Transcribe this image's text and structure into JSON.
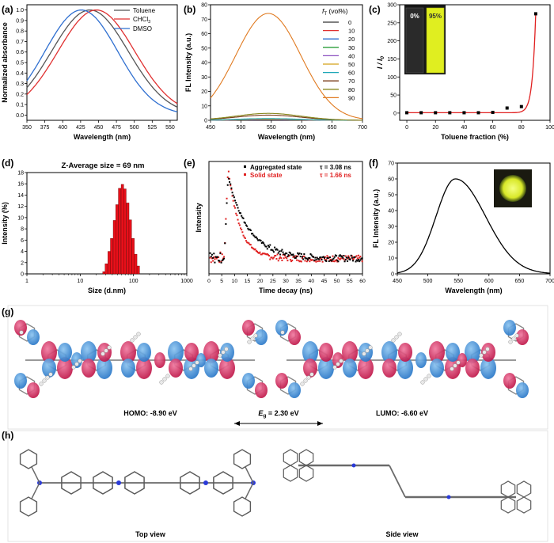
{
  "chart_data": [
    {
      "panel": "(a)",
      "type": "line",
      "xlabel": "Wavelength (nm)",
      "ylabel": "Normalized absorbance",
      "xlim": [
        350,
        560
      ],
      "ylim": [
        -0.05,
        1.05
      ],
      "xticks": [
        350,
        375,
        400,
        425,
        450,
        475,
        500,
        525,
        550
      ],
      "yticks": [
        0.0,
        0.1,
        0.2,
        0.3,
        0.4,
        0.5,
        0.6,
        0.7,
        0.8,
        0.9,
        1.0
      ],
      "legend_position": "top-right",
      "series": [
        {
          "name": "Toluene",
          "peak": 438,
          "width": 38,
          "color": "#555555"
        },
        {
          "name": "CHCl3",
          "peak": 447,
          "width": 38,
          "color": "#e03030"
        },
        {
          "name": "DMSO",
          "peak": 426,
          "width": 36,
          "color": "#2f6fd0"
        }
      ]
    },
    {
      "panel": "(b)",
      "type": "line",
      "xlabel": "Wavelength (nm)",
      "ylabel": "FL Intensity (a.u.)",
      "xlim": [
        450,
        700
      ],
      "ylim": [
        0,
        80
      ],
      "xticks": [
        450,
        500,
        550,
        600,
        650,
        700
      ],
      "yticks": [
        0,
        10,
        20,
        30,
        40,
        50,
        60,
        70,
        80
      ],
      "legend_title": "fT (vol%)",
      "legend_position": "top-right",
      "series": [
        {
          "name": "0",
          "peak": 0.3,
          "color": "#333333"
        },
        {
          "name": "10",
          "peak": 0.4,
          "color": "#e03030"
        },
        {
          "name": "20",
          "peak": 0.5,
          "color": "#2f6fd0"
        },
        {
          "name": "30",
          "peak": 0.6,
          "color": "#2a9d3a"
        },
        {
          "name": "40",
          "peak": 0.7,
          "color": "#8a4fbf"
        },
        {
          "name": "50",
          "peak": 0.9,
          "color": "#d4a017"
        },
        {
          "name": "60",
          "peak": 1.2,
          "color": "#1fa8b8"
        },
        {
          "name": "70",
          "peak": 3.6,
          "color": "#7a3b1a"
        },
        {
          "name": "80",
          "peak": 4.8,
          "color": "#8a8a20"
        },
        {
          "name": "90",
          "peak": 74,
          "color": "#e07a20"
        }
      ],
      "peak_wavelength": 545,
      "width": 38
    },
    {
      "panel": "(c)",
      "type": "scatter",
      "xlabel": "Toluene fraction (%)",
      "ylabel": "I / I0",
      "xlim": [
        -5,
        100
      ],
      "ylim": [
        -20,
        300
      ],
      "xticks": [
        0,
        20,
        40,
        60,
        80,
        100
      ],
      "yticks": [
        0,
        50,
        100,
        150,
        200,
        250,
        300
      ],
      "x": [
        0,
        10,
        20,
        30,
        40,
        50,
        60,
        70,
        80,
        90
      ],
      "y": [
        1,
        1,
        1,
        1,
        1,
        1,
        2,
        14,
        18,
        275
      ],
      "inset_labels": [
        "0%",
        "95%"
      ]
    },
    {
      "panel": "(d)",
      "type": "bar",
      "title": "Z-Average size = 69 nm",
      "xlabel": "Size (d.nm)",
      "ylabel": "Intensity (%)",
      "xscale": "log",
      "xlim": [
        1,
        1000
      ],
      "ylim": [
        0,
        18
      ],
      "xticks": [
        1,
        10,
        100,
        1000
      ],
      "yticks": [
        0,
        2,
        4,
        6,
        8,
        10,
        12,
        14,
        16,
        18
      ],
      "x": [
        28,
        31,
        35,
        39,
        44,
        49,
        55,
        62,
        69,
        78,
        87,
        98,
        110,
        123
      ],
      "values": [
        0.4,
        1.8,
        4.0,
        6.3,
        9.5,
        12.3,
        15.2,
        15.9,
        15.1,
        12.6,
        9.6,
        6.3,
        3.5,
        1.4
      ]
    },
    {
      "panel": "(e)",
      "type": "scatter",
      "xlabel": "Time decay (ns)",
      "ylabel": "Intensity",
      "xlim": [
        0,
        60
      ],
      "ylim": [
        0,
        1.05
      ],
      "xticks": [
        0,
        5,
        10,
        15,
        20,
        25,
        30,
        35,
        40,
        45,
        50,
        55,
        60
      ],
      "legend_position": "top-right",
      "series": [
        {
          "name": "Aggregated state",
          "tau_label": "τ = 3.08 ns",
          "tau": 3.08,
          "peak": 0.92,
          "color": "#000000"
        },
        {
          "name": "Solid state",
          "tau_label": "τ = 1.66 ns",
          "tau": 1.66,
          "peak": 1.0,
          "color": "#e02020"
        }
      ],
      "rise_time": 7.5,
      "baseline": 0.15
    },
    {
      "panel": "(f)",
      "type": "line",
      "xlabel": "Wavelength (nm)",
      "ylabel": "FL Intensity (a.u.)",
      "xlim": [
        450,
        700
      ],
      "ylim": [
        0,
        70
      ],
      "xticks": [
        450,
        500,
        550,
        600,
        650,
        700
      ],
      "yticks": [
        0,
        10,
        20,
        30,
        40,
        50,
        60,
        70
      ],
      "peak_wavelength": 545,
      "peak": 60,
      "width": 28
    }
  ],
  "panel_labels": {
    "a": "(a)",
    "b": "(b)",
    "c": "(c)",
    "d": "(d)",
    "e": "(e)",
    "f": "(f)",
    "g": "(g)",
    "h": "(h)"
  },
  "legend_texts": {
    "a_toluene": "Toluene",
    "a_chcl3": "CHCl",
    "a_chcl3_sub": "3",
    "a_dmso": "DMSO",
    "b_title_f": "f",
    "b_title_sub": "T",
    "b_title_rest": " (vol%)",
    "c_ylabel_i": "I / I",
    "c_ylabel_sub": "0",
    "e_agg": "Aggregated state",
    "e_solid": "Solid state",
    "e_tau1": "τ = 3.08 ns",
    "e_tau2": "τ = 1.66 ns"
  },
  "orbitals": {
    "homo": "HOMO: -8.90 eV",
    "lumo": "LUMO: -6.60 eV",
    "gap_e": "E",
    "gap_sub": "g",
    "gap_value": " = 2.30 eV"
  },
  "views": {
    "top": "Top view",
    "side": "Side view"
  },
  "colors": {
    "orbital_pos": "#d4245a",
    "orbital_neg": "#3a8fd8",
    "cuvette_emission": "#e6f020"
  }
}
